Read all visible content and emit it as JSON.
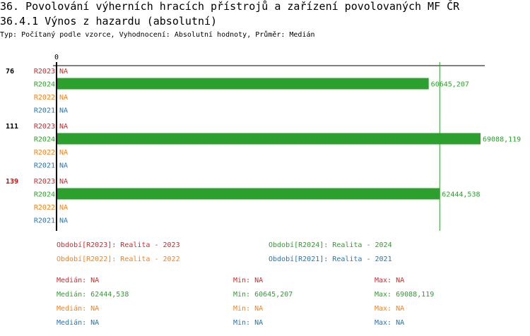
{
  "title": "36. Povolování výherních hracích přístrojů a zařízení povolovaných MF ČR",
  "subtitle": "36.4.1 Výnos z hazardu (absolutní)",
  "info": "Typ: Počítaný podle vzorce, Vyhodnocení: Absolutní hodnoty, Průměr: Medián",
  "colors": {
    "R2023": "#d62728",
    "R2024": "#2ca02c",
    "R2022": "#ff7f0e",
    "R2021": "#1f77b4"
  },
  "chart_data": {
    "type": "bar",
    "orientation": "horizontal",
    "x_tick_labels": [
      "0"
    ],
    "xlim": [
      0,
      69088.119
    ],
    "series_order": [
      "R2023",
      "R2024",
      "R2022",
      "R2021"
    ],
    "groups": [
      {
        "label": "76",
        "highlight": false,
        "values": {
          "R2023": "NA",
          "R2024": "60645,207",
          "R2022": "NA",
          "R2021": "NA"
        }
      },
      {
        "label": "111",
        "highlight": false,
        "values": {
          "R2023": "NA",
          "R2024": "69088,119",
          "R2022": "NA",
          "R2021": "NA"
        }
      },
      {
        "label": "139",
        "highlight": true,
        "values": {
          "R2023": "NA",
          "R2024": "62444,538",
          "R2022": "NA",
          "R2021": "NA"
        }
      }
    ],
    "median_line": {
      "series": "R2024",
      "value": 62444.538
    },
    "legend": [
      {
        "series": "R2023",
        "text": "Období[R2023]: Realita - 2023"
      },
      {
        "series": "R2024",
        "text": "Období[R2024]: Realita - 2024"
      },
      {
        "series": "R2022",
        "text": "Období[R2022]: Realita - 2022"
      },
      {
        "series": "R2021",
        "text": "Období[R2021]: Realita - 2021"
      }
    ],
    "stats": [
      {
        "series": "R2023",
        "median": "Medián: NA",
        "min": "Min: NA",
        "max": "Max: NA"
      },
      {
        "series": "R2024",
        "median": "Medián: 62444,538",
        "min": "Min: 60645,207",
        "max": "Max: 69088,119"
      },
      {
        "series": "R2022",
        "median": "Medián: NA",
        "min": "Min: NA",
        "max": "Max: NA"
      },
      {
        "series": "R2021",
        "median": "Medián: NA",
        "min": "Min: NA",
        "max": "Max: NA"
      }
    ]
  }
}
